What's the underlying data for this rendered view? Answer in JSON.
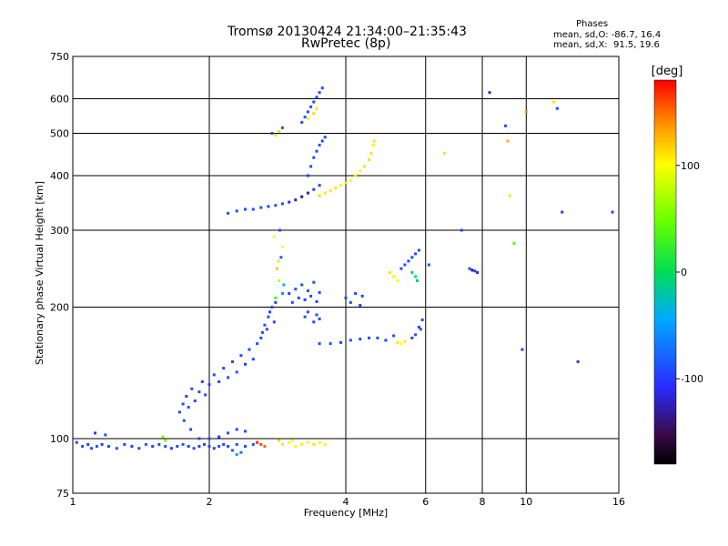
{
  "header": {
    "title": "Tromsø 20130424 21:34:00–21:35:43",
    "subtitle": "RwPretec (8p)",
    "phases_title": "Phases",
    "phases_o": "mean, sd,O: -86.7, 16.4",
    "phases_x": "mean, sd,X:  91.5, 19.6"
  },
  "colorbar": {
    "label": "[deg]",
    "ticks": [
      {
        "value": 100,
        "label": "100"
      },
      {
        "value": 0,
        "label": "0"
      },
      {
        "value": -100,
        "label": "-100"
      }
    ],
    "range": [
      -180,
      180
    ]
  },
  "chart_data": {
    "type": "scatter",
    "xlabel": "Frequency [MHz]",
    "ylabel": "Stationary phase Virtual Height [km]",
    "xscale": "log",
    "yscale": "log",
    "xlim": [
      1,
      16
    ],
    "ylim": [
      75,
      750
    ],
    "x_ticks": [
      {
        "value": 1,
        "label": "1"
      },
      {
        "value": 2,
        "label": "2"
      },
      {
        "value": 4,
        "label": "4"
      },
      {
        "value": 6,
        "label": "6"
      },
      {
        "value": 8,
        "label": "8"
      },
      {
        "value": 10,
        "label": "10"
      },
      {
        "value": 16,
        "label": "16"
      }
    ],
    "y_ticks": [
      {
        "value": 75,
        "label": "75"
      },
      {
        "value": 100,
        "label": "100"
      },
      {
        "value": 200,
        "label": "200"
      },
      {
        "value": 300,
        "label": "300"
      },
      {
        "value": 400,
        "label": "400"
      },
      {
        "value": 500,
        "label": "500"
      },
      {
        "value": 600,
        "label": "600"
      },
      {
        "value": 750,
        "label": "750"
      }
    ],
    "grid": true,
    "color_value": "phase (deg)",
    "points": [
      [
        1.02,
        98,
        -95
      ],
      [
        1.05,
        96,
        -92
      ],
      [
        1.08,
        97,
        -98
      ],
      [
        1.1,
        95,
        -90
      ],
      [
        1.13,
        96,
        -88
      ],
      [
        1.16,
        97,
        -95
      ],
      [
        1.2,
        96,
        -92
      ],
      [
        1.25,
        95,
        -90
      ],
      [
        1.3,
        97,
        -96
      ],
      [
        1.35,
        96,
        -93
      ],
      [
        1.4,
        95,
        -91
      ],
      [
        1.45,
        97,
        -88
      ],
      [
        1.5,
        96,
        -94
      ],
      [
        1.55,
        97,
        -92
      ],
      [
        1.6,
        96,
        -89
      ],
      [
        1.65,
        95,
        -97
      ],
      [
        1.7,
        96,
        -94
      ],
      [
        1.75,
        97,
        -90
      ],
      [
        1.8,
        96,
        -95
      ],
      [
        1.85,
        95,
        -88
      ],
      [
        1.9,
        96,
        -92
      ],
      [
        1.95,
        97,
        -96
      ],
      [
        2.0,
        96,
        -91
      ],
      [
        2.05,
        95,
        -95
      ],
      [
        2.1,
        96,
        -89
      ],
      [
        2.15,
        97,
        -93
      ],
      [
        2.2,
        96,
        -90
      ],
      [
        2.3,
        97,
        -94
      ],
      [
        2.4,
        96,
        -88
      ],
      [
        2.5,
        97,
        -86
      ],
      [
        1.12,
        103,
        -100
      ],
      [
        1.18,
        102,
        -88
      ],
      [
        1.6,
        99,
        55
      ],
      [
        1.58,
        101,
        60
      ],
      [
        2.6,
        97,
        160
      ],
      [
        2.55,
        98,
        170
      ],
      [
        2.65,
        96,
        150
      ],
      [
        2.9,
        97,
        110
      ],
      [
        3.0,
        98,
        105
      ],
      [
        3.1,
        96,
        100
      ],
      [
        3.2,
        97,
        108
      ],
      [
        3.3,
        98,
        102
      ],
      [
        3.4,
        97,
        112
      ],
      [
        3.5,
        98,
        95
      ],
      [
        3.6,
        97,
        105
      ],
      [
        2.85,
        99,
        115
      ],
      [
        3.05,
        99,
        98
      ],
      [
        1.72,
        115,
        -92
      ],
      [
        1.75,
        120,
        -90
      ],
      [
        1.78,
        125,
        -95
      ],
      [
        1.8,
        118,
        -88
      ],
      [
        1.83,
        130,
        -92
      ],
      [
        1.86,
        122,
        -96
      ],
      [
        1.9,
        128,
        -90
      ],
      [
        1.93,
        135,
        -94
      ],
      [
        1.96,
        126,
        -89
      ],
      [
        2.0,
        133,
        -93
      ],
      [
        2.05,
        140,
        -91
      ],
      [
        2.1,
        135,
        -87
      ],
      [
        2.15,
        145,
        -95
      ],
      [
        2.2,
        138,
        -90
      ],
      [
        2.25,
        150,
        -93
      ],
      [
        2.3,
        142,
        -88
      ],
      [
        2.35,
        155,
        -92
      ],
      [
        2.4,
        148,
        -96
      ],
      [
        2.45,
        160,
        -90
      ],
      [
        2.5,
        152,
        -94
      ],
      [
        2.55,
        165,
        -89
      ],
      [
        2.6,
        170,
        -93
      ],
      [
        2.62,
        175,
        -91
      ],
      [
        2.65,
        182,
        -88
      ],
      [
        2.7,
        190,
        -92
      ],
      [
        2.72,
        195,
        -95
      ],
      [
        2.75,
        200,
        -90
      ],
      [
        2.8,
        205,
        -94
      ],
      [
        2.78,
        185,
        -89
      ],
      [
        2.68,
        178,
        -93
      ],
      [
        1.9,
        100,
        -92
      ],
      [
        2.0,
        100,
        -88
      ],
      [
        2.1,
        101,
        -95
      ],
      [
        2.2,
        103,
        -90
      ],
      [
        2.3,
        105,
        -94
      ],
      [
        2.4,
        104,
        -89
      ],
      [
        1.82,
        105,
        -93
      ],
      [
        1.76,
        110,
        -91
      ],
      [
        2.3,
        92,
        -50
      ],
      [
        2.35,
        93,
        -70
      ],
      [
        2.25,
        94,
        -80
      ],
      [
        2.8,
        210,
        30
      ],
      [
        2.85,
        230,
        80
      ],
      [
        2.9,
        215,
        -60
      ],
      [
        2.82,
        245,
        120
      ],
      [
        2.88,
        260,
        -85
      ],
      [
        2.9,
        275,
        100
      ],
      [
        2.78,
        290,
        95
      ],
      [
        2.92,
        225,
        -40
      ],
      [
        2.84,
        255,
        110
      ],
      [
        2.86,
        300,
        -92
      ],
      [
        3.0,
        215,
        -95
      ],
      [
        3.05,
        205,
        -90
      ],
      [
        3.1,
        220,
        -88
      ],
      [
        3.15,
        210,
        -94
      ],
      [
        3.2,
        225,
        -92
      ],
      [
        3.25,
        208,
        -96
      ],
      [
        3.3,
        218,
        -90
      ],
      [
        3.35,
        212,
        -93
      ],
      [
        3.4,
        228,
        -89
      ],
      [
        3.45,
        206,
        -95
      ],
      [
        3.5,
        216,
        -91
      ],
      [
        3.25,
        190,
        -92
      ],
      [
        3.3,
        195,
        -88
      ],
      [
        3.4,
        185,
        -95
      ],
      [
        3.45,
        192,
        -90
      ],
      [
        3.5,
        188,
        -94
      ],
      [
        3.5,
        165,
        -92
      ],
      [
        3.7,
        165,
        -88
      ],
      [
        3.9,
        166,
        -94
      ],
      [
        4.1,
        168,
        -90
      ],
      [
        4.3,
        169,
        -93
      ],
      [
        4.5,
        170,
        -89
      ],
      [
        4.7,
        170,
        -92
      ],
      [
        4.9,
        168,
        -95
      ],
      [
        5.1,
        172,
        -90
      ],
      [
        5.2,
        166,
        110
      ],
      [
        5.3,
        165,
        100
      ],
      [
        5.4,
        167,
        108
      ],
      [
        5.6,
        170,
        -92
      ],
      [
        5.7,
        173,
        -88
      ],
      [
        5.8,
        180,
        -94
      ],
      [
        5.9,
        187,
        -90
      ],
      [
        5.85,
        178,
        -92
      ],
      [
        4.0,
        210,
        -90
      ],
      [
        4.1,
        205,
        -94
      ],
      [
        4.2,
        215,
        -88
      ],
      [
        4.3,
        202,
        -92
      ],
      [
        4.35,
        212,
        -95
      ],
      [
        5.0,
        240,
        110
      ],
      [
        5.1,
        235,
        105
      ],
      [
        5.2,
        230,
        100
      ],
      [
        5.3,
        245,
        -92
      ],
      [
        5.4,
        250,
        -88
      ],
      [
        5.5,
        255,
        -94
      ],
      [
        5.6,
        260,
        -90
      ],
      [
        5.7,
        265,
        -93
      ],
      [
        5.8,
        270,
        -89
      ],
      [
        5.6,
        240,
        -5
      ],
      [
        5.7,
        235,
        5
      ],
      [
        5.75,
        230,
        -20
      ],
      [
        7.5,
        245,
        -92
      ],
      [
        7.6,
        243,
        -140
      ],
      [
        7.7,
        242,
        -95
      ],
      [
        7.8,
        240,
        -110
      ],
      [
        6.1,
        250,
        -88
      ],
      [
        2.5,
        335,
        -92
      ],
      [
        2.6,
        338,
        -88
      ],
      [
        2.7,
        340,
        -94
      ],
      [
        2.8,
        342,
        -90
      ],
      [
        2.9,
        345,
        -93
      ],
      [
        3.0,
        348,
        -110
      ],
      [
        3.1,
        352,
        -130
      ],
      [
        3.2,
        358,
        -145
      ],
      [
        3.3,
        365,
        -125
      ],
      [
        3.4,
        372,
        -100
      ],
      [
        3.5,
        380,
        -95
      ],
      [
        2.4,
        335,
        -90
      ],
      [
        2.3,
        332,
        -94
      ],
      [
        2.2,
        328,
        -88
      ],
      [
        3.5,
        360,
        115
      ],
      [
        3.6,
        365,
        110
      ],
      [
        3.7,
        370,
        108
      ],
      [
        3.8,
        375,
        112
      ],
      [
        3.9,
        380,
        105
      ],
      [
        4.0,
        385,
        110
      ],
      [
        4.1,
        390,
        100
      ],
      [
        4.2,
        400,
        108
      ],
      [
        4.3,
        410,
        102
      ],
      [
        4.4,
        420,
        110
      ],
      [
        4.5,
        435,
        112
      ],
      [
        4.55,
        450,
        108
      ],
      [
        4.6,
        470,
        105
      ],
      [
        4.62,
        480,
        110
      ],
      [
        3.3,
        400,
        -95
      ],
      [
        3.35,
        420,
        -92
      ],
      [
        3.4,
        440,
        -90
      ],
      [
        3.45,
        455,
        -94
      ],
      [
        3.5,
        470,
        -88
      ],
      [
        3.55,
        480,
        -92
      ],
      [
        3.6,
        490,
        -95
      ],
      [
        3.2,
        530,
        -92
      ],
      [
        3.25,
        545,
        -88
      ],
      [
        3.3,
        560,
        -94
      ],
      [
        3.35,
        575,
        -90
      ],
      [
        3.4,
        590,
        -93
      ],
      [
        3.45,
        605,
        -89
      ],
      [
        3.5,
        620,
        -92
      ],
      [
        3.55,
        635,
        -95
      ],
      [
        3.4,
        555,
        115
      ],
      [
        3.45,
        570,
        110
      ],
      [
        3.3,
        540,
        105
      ],
      [
        2.75,
        500,
        -90
      ],
      [
        2.8,
        495,
        110
      ],
      [
        2.85,
        505,
        80
      ],
      [
        2.9,
        515,
        -88
      ],
      [
        9.0,
        520,
        -92
      ],
      [
        9.2,
        360,
        110
      ],
      [
        9.4,
        280,
        40
      ],
      [
        11.5,
        590,
        110
      ],
      [
        11.7,
        570,
        -92
      ],
      [
        10.0,
        560,
        140
      ],
      [
        15.5,
        330,
        -92
      ],
      [
        13.0,
        150,
        -100
      ],
      [
        9.8,
        160,
        -95
      ],
      [
        7.2,
        300,
        -94
      ],
      [
        8.3,
        620,
        -120
      ],
      [
        9.1,
        480,
        130
      ],
      [
        6.6,
        450,
        110
      ],
      [
        12.0,
        330,
        -100
      ]
    ]
  }
}
